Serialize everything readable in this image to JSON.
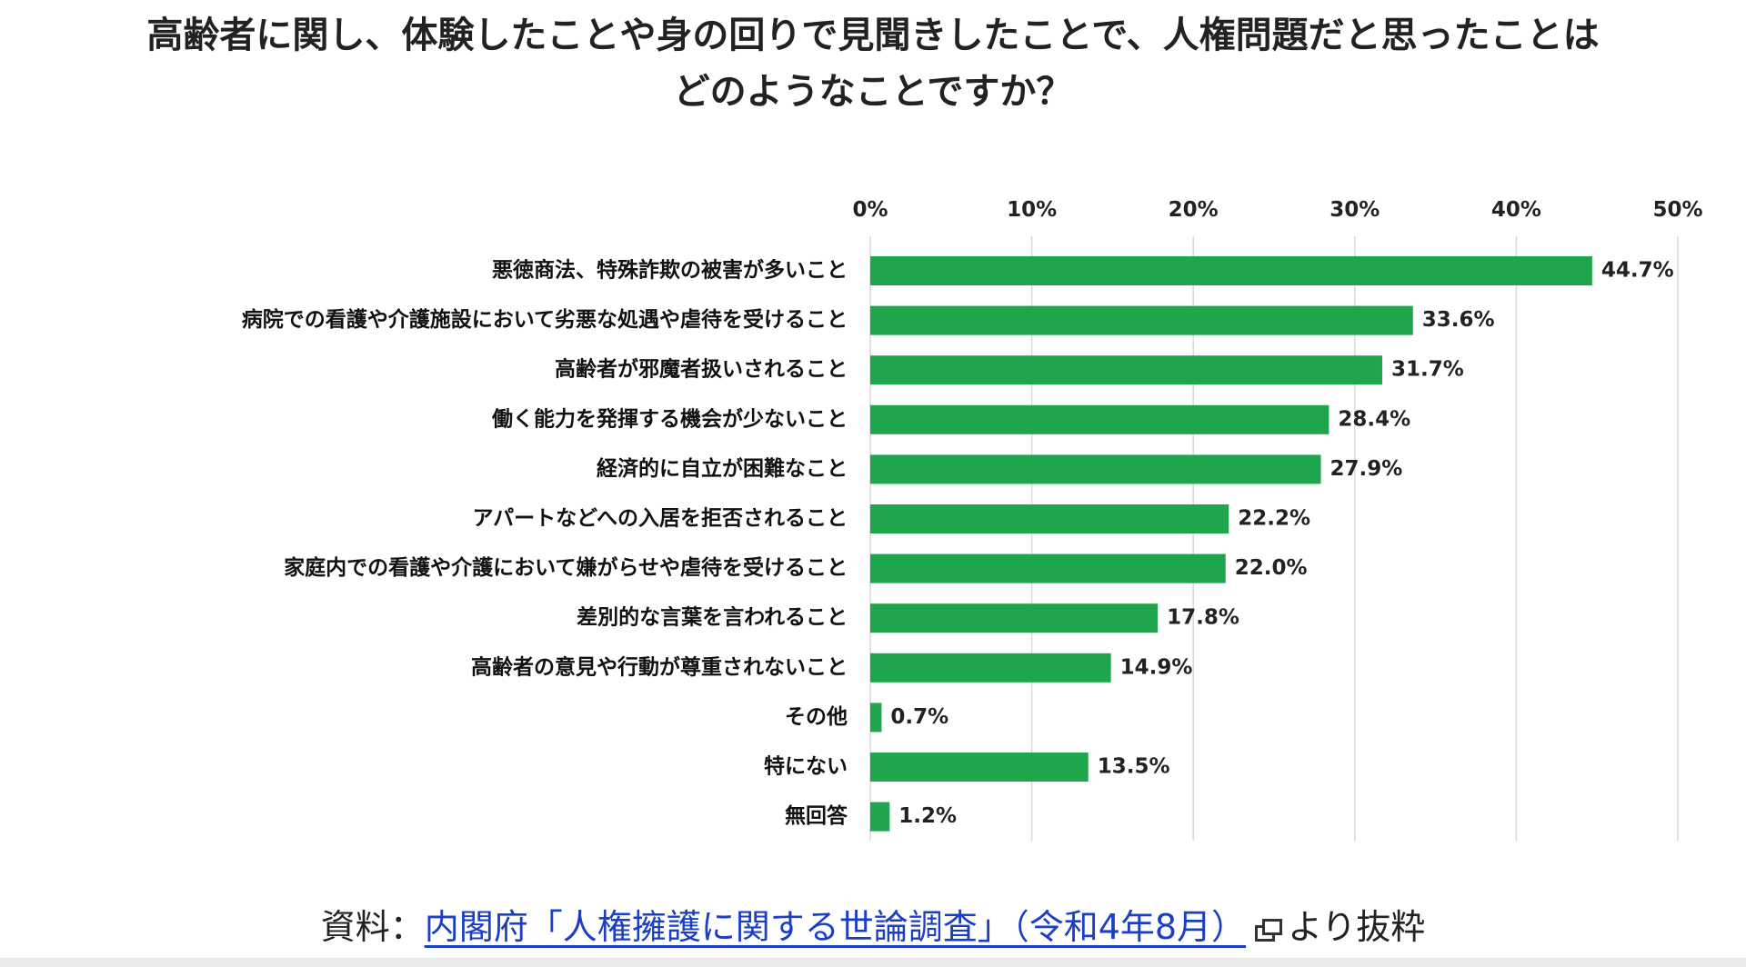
{
  "title": {
    "line1": "高齢者に関し、体験したことや身の回りで見聞きしたことで、人権問題だと思ったことは",
    "line2": "どのようなことですか？"
  },
  "chart_data": {
    "type": "bar",
    "orientation": "horizontal",
    "categories": [
      "悪徳商法、特殊詐欺の被害が多いこと",
      "病院での看護や介護施設において劣悪な処遇や虐待を受けること",
      "高齢者が邪魔者扱いされること",
      "働く能力を発揮する機会が少ないこと",
      "経済的に自立が困難なこと",
      "アパートなどへの入居を拒否されること",
      "家庭内での看護や介護において嫌がらせや虐待を受けること",
      "差別的な言葉を言われること",
      "高齢者の意見や行動が尊重されないこと",
      "その他",
      "特にない",
      "無回答"
    ],
    "values": [
      44.7,
      33.6,
      31.7,
      28.4,
      27.9,
      22.2,
      22.0,
      17.8,
      14.9,
      0.7,
      13.5,
      1.2
    ],
    "value_labels": [
      "44.7%",
      "33.6%",
      "31.7%",
      "28.4%",
      "27.9%",
      "22.2%",
      "22.0%",
      "17.8%",
      "14.9%",
      "0.7%",
      "13.5%",
      "1.2%"
    ],
    "xlim": [
      0,
      50
    ],
    "ticks": [
      0,
      10,
      20,
      30,
      40,
      50
    ],
    "tick_labels": [
      "0%",
      "10%",
      "20%",
      "30%",
      "40%",
      "50%"
    ],
    "axis_position": "top",
    "grid": true,
    "bar_color": "#1fa64d",
    "grid_color": "#d9d9d9"
  },
  "source": {
    "prefix": "資料：",
    "link_text": "内閣府「人権擁護に関する世論調査」（令和4年8月）",
    "icon": "external-link-icon",
    "suffix": "より抜粋"
  }
}
